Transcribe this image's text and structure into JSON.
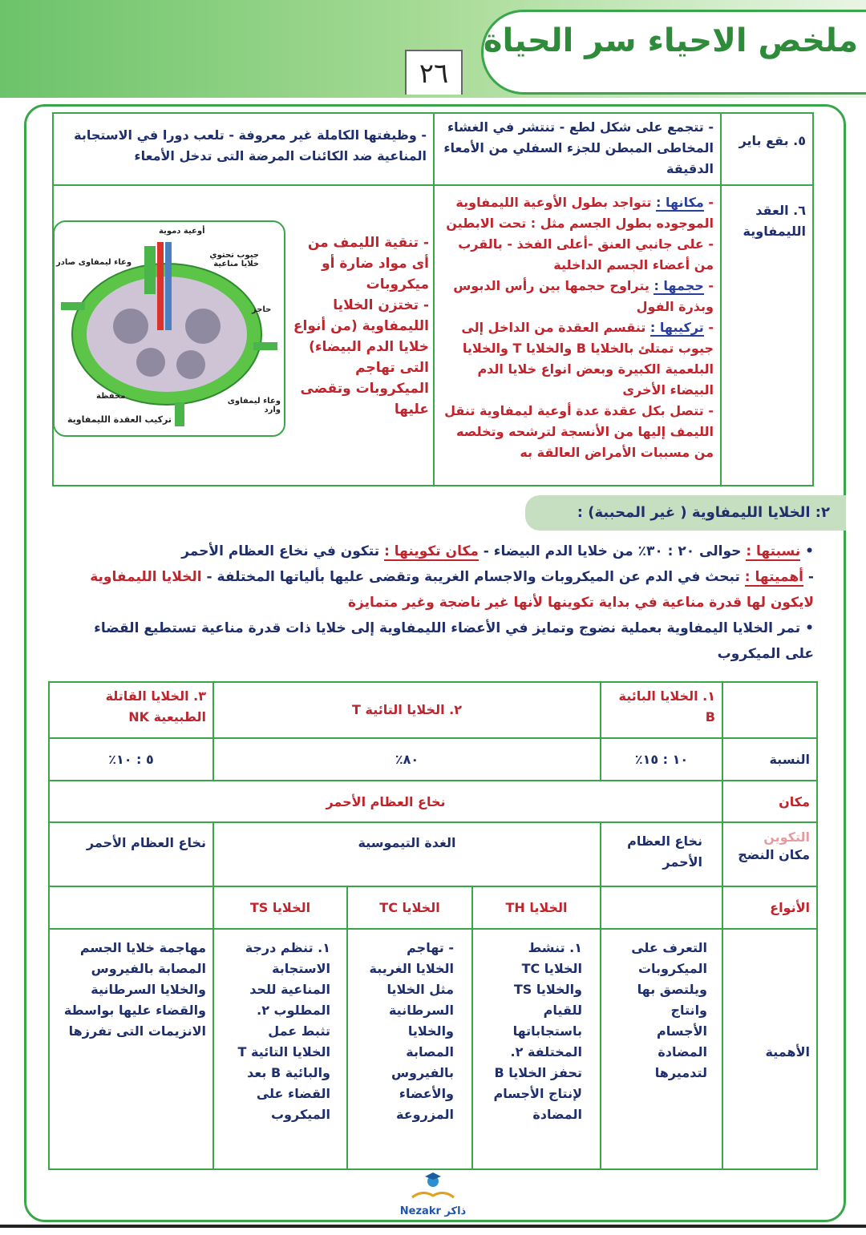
{
  "header": {
    "title": "ملخص الاحياء سر الحياة",
    "page_number": "٢٦"
  },
  "table1": {
    "row5": {
      "label": "٥. بقع باير",
      "location": "- تتجمع على شكل لطع - تنتشر في الغشاء المخاطى المبطن للجزء السفلي من الأمعاء الدقيقة",
      "function": "- وظيفتها الكاملة غير معروفة - تلعب دورا في الاستجابة المناعية ضد الكائنات المرضة التى تدخل الأمعاء"
    },
    "row6": {
      "label": "٦. العقد الليمفاوية",
      "place_label": "مكانها :",
      "place_text": "تتواجد بطول الأوعية الليمفاوية الموجوده بطول الجسم مثل : تحت الابطين - على جانبي العنق -أعلى الفخذ - بالقرب من أعضاء الجسم الداخلية",
      "size_label": "حجمها :",
      "size_text": "يتراوح حجمها بين رأس الدبوس وبذرة الفول",
      "structure_label": "تركيبها :",
      "structure_text": "تنقسم العقدة من الداخل إلى جيوب تمتلئ بالخلايا B والخلايا T والخلايا البلعمية الكبيرة وبعض انواع خلايا الدم البيضاء الأخرى",
      "vessels_text": "- تتصل بكل عقدة عدة أوعية ليمفاوية تنقل الليمف إليها من الأنسجة لترشحه وتخلصه من مسببات الأمراض العالقة به",
      "functions": [
        "- تنقية الليمف من أى مواد ضارة أو ميكروبات",
        "- تختزن الخلايا الليمفاوية (من أنواع خلايا الدم البيضاء) التى تهاجم الميكروبات وتقضى عليها"
      ],
      "diagram": {
        "caption": "تركيب العقدة الليمفاوية",
        "labels": {
          "blood_vessels": "أوعية دموية",
          "efferent": "وعاء ليمفاوى صادر",
          "sinuses": "جيوب تحتوي خلايا مناعية",
          "septum": "حاجز",
          "capsule": "محفظة",
          "afferent": "وعاء ليمفاوى وارد"
        }
      }
    }
  },
  "section2": {
    "heading": "٢: الخلايا الليمفاوية ( غير المحببة) :",
    "ratio_label": "نسبتها :",
    "ratio_text": "حوالى ٢٠ : ٣٠٪ من خلايا الدم البيضاء -",
    "origin_label": "مكان تكوينها :",
    "origin_text": "تتكون في نخاع العظام الأحمر",
    "importance_label": "أهميتها :",
    "importance_text": "تبحث في الدم عن الميكروبات والاجسام الغريبة وتقضى عليها بألياتها المختلفة -",
    "importance_red": "الخلايا الليمفاوية لايكون لها قدرة مناعية في بداية تكوينها لأنها غير ناضجة وغير متمايزة",
    "maturation": "تمر الخلايا اليمفاوية بعملية نضوج وتمايز في الأعضاء الليمفاوية إلى خلايا ذات قدرة مناعية تستطيع القضاء على الميكروب"
  },
  "table2": {
    "headers": [
      "١. الخلايا البائية B",
      "٢. الخلايا التائية T",
      "٣. الخلايا القاتلة الطبيعية NK"
    ],
    "row_labels": [
      "النسبة",
      "مكان التكوين",
      "مكان النضج",
      "الأنواع",
      "الأهمية"
    ],
    "ratio": [
      "١٠ : ١٥٪",
      "٨٠٪",
      "٥ : ١٠٪"
    ],
    "origin": "نخاع العظام الأحمر",
    "maturation": [
      "نخاع العظام الأحمر",
      "الغدة التيموسية",
      "نخاع العظام الأحمر"
    ],
    "types": [
      "الخلايا TH",
      "الخلايا TC",
      "الخلايا TS"
    ],
    "importance": [
      "التعرف على الميكروبات ويلتصق بها وانتاج الأجسام المضادة لتدميرها",
      "١. تنشط الخلايا TC والخلايا TS للقيام باستجاباتها المختلفة ٢. تحفز الخلايا B لإنتاج الأجسام المضادة",
      "- تهاجم الخلايا الغريبة مثل الخلايا السرطانية والخلايا المصابة بالفيروس والأعضاء المزروعة",
      "١. تنظم درجة الاستجابة المناعية للحد المطلوب ٢. تثبط عمل الخلايا التائية T والبائية B بعد القضاء على الميكروب",
      "مهاجمة خلايا الجسم المصابة بالفيروس والخلايا السرطانية والقضاء عليها بواسطة الانزيمات التى تفرزها"
    ]
  },
  "footer": {
    "logo_text": "Nezakr ذاكر"
  },
  "colors": {
    "green": "#3aa54a",
    "red": "#c0242c",
    "blue": "#1f2f6b"
  }
}
